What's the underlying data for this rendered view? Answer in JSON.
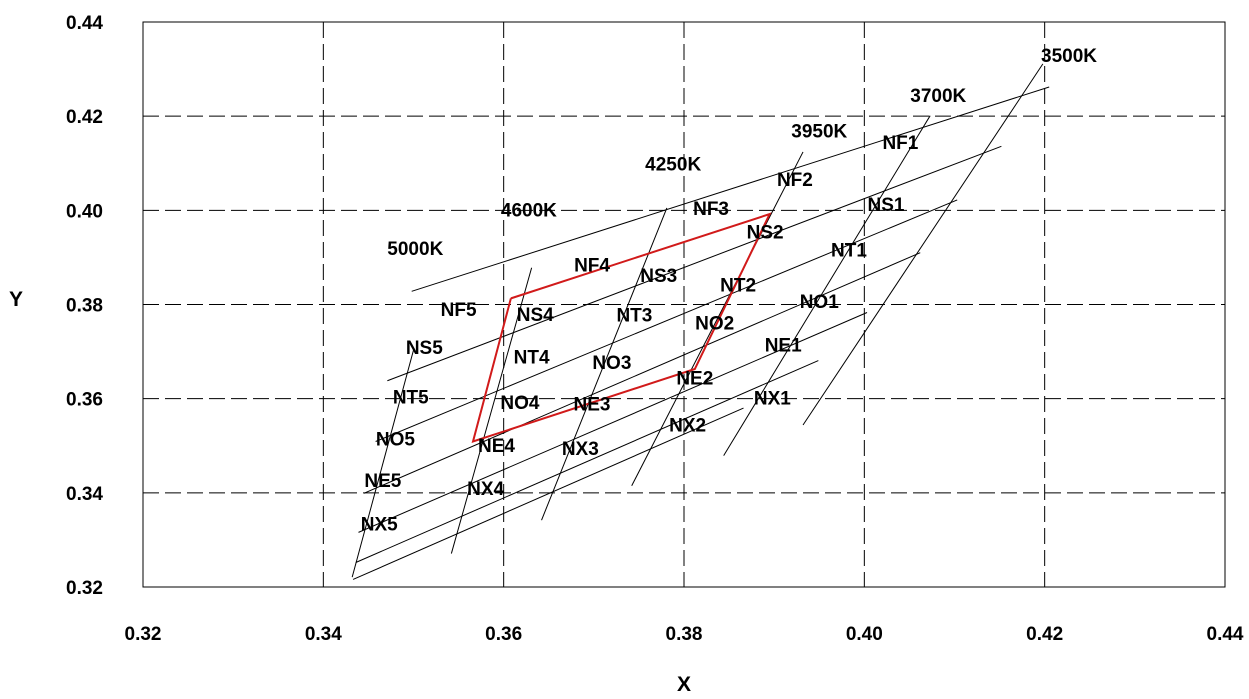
{
  "chart_data": {
    "type": "line",
    "xlabel": "X",
    "ylabel": "Y",
    "xlim": [
      0.32,
      0.44
    ],
    "ylim": [
      0.32,
      0.44
    ],
    "grid": true,
    "x_ticks": [
      "0.32",
      "0.34",
      "0.36",
      "0.38",
      "0.40",
      "0.42",
      "0.44"
    ],
    "y_ticks": [
      "0.32",
      "0.34",
      "0.36",
      "0.38",
      "0.40",
      "0.42",
      "0.44"
    ],
    "cct_lines": [
      {
        "name": "5000K",
        "points": [
          [
            0.3432,
            0.3221
          ],
          [
            0.35,
            0.3703
          ]
        ]
      },
      {
        "name": "4600K",
        "points": [
          [
            0.3542,
            0.3271
          ],
          [
            0.3631,
            0.3878
          ]
        ]
      },
      {
        "name": "4250K",
        "points": [
          [
            0.3642,
            0.3342
          ],
          [
            0.3781,
            0.4005
          ]
        ]
      },
      {
        "name": "3950K",
        "points": [
          [
            0.3742,
            0.3415
          ],
          [
            0.3932,
            0.4124
          ]
        ]
      },
      {
        "name": "3700K",
        "points": [
          [
            0.3844,
            0.3479
          ],
          [
            0.4073,
            0.4201
          ]
        ]
      },
      {
        "name": "3500K",
        "points": [
          [
            0.3932,
            0.3544
          ],
          [
            0.4198,
            0.4311
          ]
        ]
      }
    ],
    "cct_labels": [
      {
        "text": "5000K",
        "x": 0.3502,
        "y": 0.392
      },
      {
        "text": "4600K",
        "x": 0.3628,
        "y": 0.4002
      },
      {
        "text": "4250K",
        "x": 0.3788,
        "y": 0.41
      },
      {
        "text": "3950K",
        "x": 0.395,
        "y": 0.417
      },
      {
        "text": "3700K",
        "x": 0.4082,
        "y": 0.4245
      },
      {
        "text": "3500K",
        "x": 0.4227,
        "y": 0.433
      }
    ],
    "boundary_lines": [
      [
        [
          0.3498,
          0.3828
        ],
        [
          0.4205,
          0.4262
        ]
      ],
      [
        [
          0.3471,
          0.3638
        ],
        [
          0.4152,
          0.4136
        ]
      ],
      [
        [
          0.3458,
          0.3509
        ],
        [
          0.4103,
          0.4022
        ]
      ],
      [
        [
          0.3445,
          0.3399
        ],
        [
          0.4062,
          0.391
        ]
      ],
      [
        [
          0.3439,
          0.3316
        ],
        [
          0.4003,
          0.3783
        ]
      ],
      [
        [
          0.3436,
          0.3252
        ],
        [
          0.3949,
          0.3681
        ]
      ],
      [
        [
          0.3433,
          0.3216
        ],
        [
          0.3866,
          0.358
        ]
      ]
    ],
    "highlight_region": {
      "color": "#d11a1a",
      "points": [
        [
          0.3608,
          0.3813
        ],
        [
          0.3895,
          0.3992
        ],
        [
          0.3812,
          0.3663
        ],
        [
          0.3566,
          0.3509
        ],
        [
          0.3608,
          0.3813
        ]
      ]
    },
    "bin_labels": [
      {
        "text": "NF1",
        "x": 0.404,
        "y": 0.4145
      },
      {
        "text": "NF2",
        "x": 0.3923,
        "y": 0.4067
      },
      {
        "text": "NF3",
        "x": 0.383,
        "y": 0.4005
      },
      {
        "text": "NF4",
        "x": 0.3698,
        "y": 0.3885
      },
      {
        "text": "NF5",
        "x": 0.355,
        "y": 0.379
      },
      {
        "text": "NS1",
        "x": 0.4024,
        "y": 0.4013
      },
      {
        "text": "NS2",
        "x": 0.389,
        "y": 0.3955
      },
      {
        "text": "NS3",
        "x": 0.3772,
        "y": 0.3863
      },
      {
        "text": "NS4",
        "x": 0.3635,
        "y": 0.378
      },
      {
        "text": "NS5",
        "x": 0.3512,
        "y": 0.371
      },
      {
        "text": "NT1",
        "x": 0.3983,
        "y": 0.3917
      },
      {
        "text": "NT2",
        "x": 0.386,
        "y": 0.3843
      },
      {
        "text": "NT3",
        "x": 0.3745,
        "y": 0.3779
      },
      {
        "text": "NT4",
        "x": 0.3631,
        "y": 0.369
      },
      {
        "text": "NT5",
        "x": 0.3497,
        "y": 0.3605
      },
      {
        "text": "NO1",
        "x": 0.395,
        "y": 0.3807
      },
      {
        "text": "NO2",
        "x": 0.3834,
        "y": 0.3762
      },
      {
        "text": "NO3",
        "x": 0.372,
        "y": 0.3678
      },
      {
        "text": "NO4",
        "x": 0.3618,
        "y": 0.3593
      },
      {
        "text": "NO5",
        "x": 0.348,
        "y": 0.3515
      },
      {
        "text": "NE1",
        "x": 0.391,
        "y": 0.3715
      },
      {
        "text": "NE2",
        "x": 0.3812,
        "y": 0.3645
      },
      {
        "text": "NE3",
        "x": 0.3698,
        "y": 0.359
      },
      {
        "text": "NE4",
        "x": 0.3592,
        "y": 0.3502
      },
      {
        "text": "NE5",
        "x": 0.3466,
        "y": 0.3427
      },
      {
        "text": "NX1",
        "x": 0.3898,
        "y": 0.3602
      },
      {
        "text": "NX2",
        "x": 0.3804,
        "y": 0.3545
      },
      {
        "text": "NX3",
        "x": 0.3685,
        "y": 0.3495
      },
      {
        "text": "NX4",
        "x": 0.358,
        "y": 0.341
      },
      {
        "text": "NX5",
        "x": 0.3462,
        "y": 0.3335
      }
    ]
  }
}
